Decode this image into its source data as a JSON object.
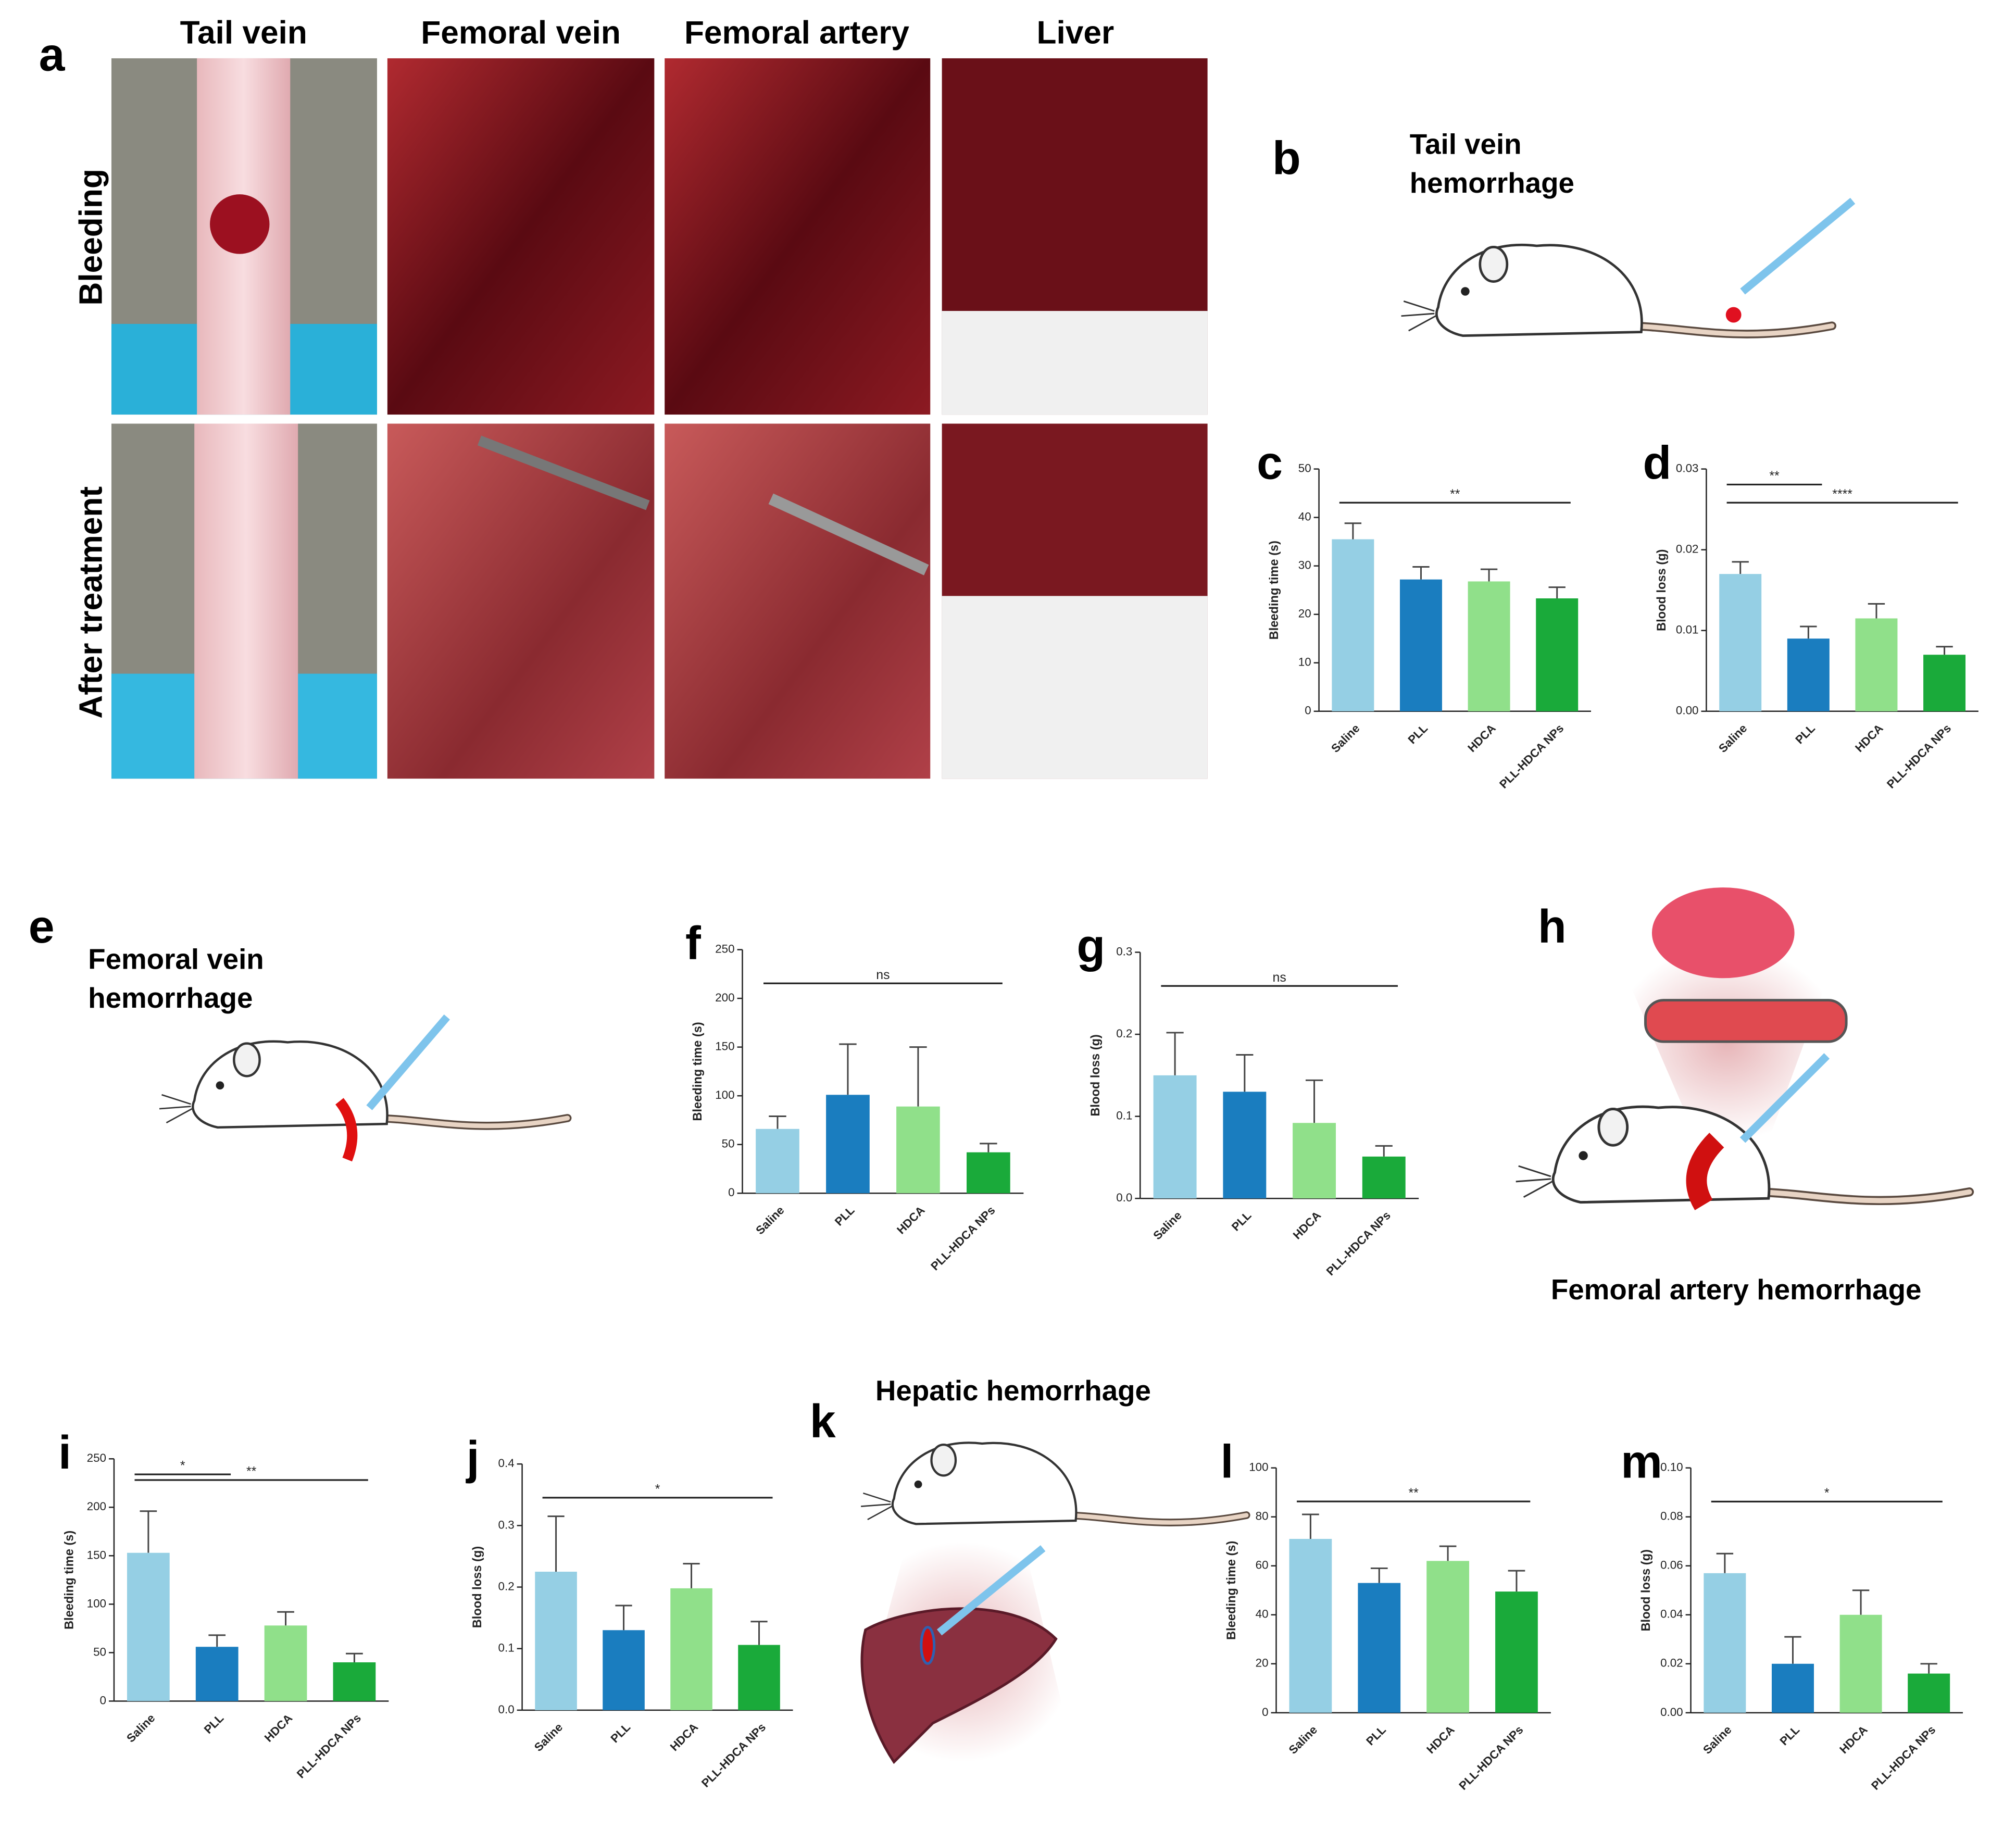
{
  "panel_a": {
    "letter": "a",
    "columns": [
      "Tail vein",
      "Femoral  vein",
      "Femoral  artery",
      "Liver"
    ],
    "rows": [
      "Bleeding",
      "After treatment"
    ]
  },
  "diagrams": [
    {
      "letter": "b",
      "lines": [
        "Tail vein",
        "hemorrhage"
      ]
    },
    {
      "letter": "e",
      "lines": [
        "Femoral vein",
        "hemorrhage"
      ]
    },
    {
      "letter": "h",
      "lines": [
        "Femoral artery hemorrhage"
      ]
    },
    {
      "letter": "k",
      "lines": [
        "Hepatic hemorrhage"
      ]
    }
  ],
  "chart_data": [
    {
      "type": "bar",
      "panel": "c",
      "ylabel": "Bleeding time (s)",
      "categories": [
        "Saline",
        "PLL",
        "HDCA",
        "PLL-HDCA NPs"
      ],
      "colors": [
        "#95cfe4",
        "#1a7dbf",
        "#90e08a",
        "#1aaa3a"
      ],
      "values": [
        35.5,
        27.2,
        26.8,
        23.3
      ],
      "errors": [
        3.3,
        2.6,
        2.5,
        2.3
      ],
      "ylim": [
        0,
        50
      ],
      "yticks": [
        0,
        10,
        20,
        30,
        40,
        50
      ],
      "annotations": [
        {
          "label": "**",
          "from": 0,
          "to": 3
        }
      ]
    },
    {
      "type": "bar",
      "panel": "d",
      "ylabel": "Blood loss (g)",
      "categories": [
        "Saline",
        "PLL",
        "HDCA",
        "PLL-HDCA NPs"
      ],
      "colors": [
        "#95cfe4",
        "#1a7dbf",
        "#90e08a",
        "#1aaa3a"
      ],
      "values": [
        0.017,
        0.009,
        0.0115,
        0.007
      ],
      "errors": [
        0.0015,
        0.0015,
        0.0018,
        0.001
      ],
      "ylim": [
        0,
        0.03
      ],
      "yticks": [
        {
          "value": 0,
          "label": "0.00"
        },
        {
          "value": 0.01,
          "label": "0.01"
        },
        {
          "value": 0.02,
          "label": "0.02"
        },
        {
          "value": 0.03,
          "label": "0.03"
        }
      ],
      "annotations": [
        {
          "label": "**",
          "from": 0,
          "to": 1
        },
        {
          "label": "****",
          "from": 0,
          "to": 3
        }
      ]
    },
    {
      "type": "bar",
      "panel": "f",
      "ylabel": "Bleeding time (s)",
      "categories": [
        "Saline",
        "PLL",
        "HDCA",
        "PLL-HDCA NPs"
      ],
      "colors": [
        "#95cfe4",
        "#1a7dbf",
        "#90e08a",
        "#1aaa3a"
      ],
      "values": [
        66,
        101,
        89,
        42
      ],
      "errors": [
        13,
        52,
        61,
        9
      ],
      "ylim": [
        0,
        250
      ],
      "yticks": [
        0,
        50,
        100,
        150,
        200,
        250
      ],
      "annotations": [
        {
          "label": "ns",
          "from": 0,
          "to": 3
        }
      ]
    },
    {
      "type": "bar",
      "panel": "g",
      "ylabel": "Blood loss (g)",
      "categories": [
        "Saline",
        "PLL",
        "HDCA",
        "PLL-HDCA NPs"
      ],
      "colors": [
        "#95cfe4",
        "#1a7dbf",
        "#90e08a",
        "#1aaa3a"
      ],
      "values": [
        0.15,
        0.13,
        0.092,
        0.051
      ],
      "errors": [
        0.052,
        0.045,
        0.052,
        0.013
      ],
      "ylim": [
        0,
        0.3
      ],
      "yticks": [
        {
          "value": 0,
          "label": "0.0"
        },
        0.1,
        0.2,
        0.3
      ],
      "annotations": [
        {
          "label": "ns",
          "from": 0,
          "to": 3
        }
      ]
    },
    {
      "type": "bar",
      "panel": "i",
      "ylabel": "Bleeding time (s)",
      "categories": [
        "Saline",
        "PLL",
        "HDCA",
        "PLL-HDCA NPs"
      ],
      "colors": [
        "#95cfe4",
        "#1a7dbf",
        "#90e08a",
        "#1aaa3a"
      ],
      "values": [
        153,
        56,
        78,
        40
      ],
      "errors": [
        43,
        12,
        14,
        9
      ],
      "ylim": [
        0,
        250
      ],
      "yticks": [
        0,
        50,
        100,
        150,
        200,
        250
      ],
      "annotations": [
        {
          "label": "*",
          "from": 0,
          "to": 1
        },
        {
          "label": "**",
          "from": 0,
          "to": 3
        }
      ]
    },
    {
      "type": "bar",
      "panel": "j",
      "ylabel": "Blood loss (g)",
      "categories": [
        "Saline",
        "PLL",
        "HDCA",
        "PLL-HDCA NPs"
      ],
      "colors": [
        "#95cfe4",
        "#1a7dbf",
        "#90e08a",
        "#1aaa3a"
      ],
      "values": [
        0.225,
        0.13,
        0.198,
        0.106
      ],
      "errors": [
        0.09,
        0.04,
        0.04,
        0.038
      ],
      "ylim": [
        0,
        0.4
      ],
      "yticks": [
        {
          "value": 0,
          "label": "0.0"
        },
        0.1,
        0.2,
        0.3,
        0.4
      ],
      "annotations": [
        {
          "label": "*",
          "from": 0,
          "to": 3
        }
      ]
    },
    {
      "type": "bar",
      "panel": "l",
      "ylabel": "Bleeding time (s)",
      "categories": [
        "Saline",
        "PLL",
        "HDCA",
        "PLL-HDCA NPs"
      ],
      "colors": [
        "#95cfe4",
        "#1a7dbf",
        "#90e08a",
        "#1aaa3a"
      ],
      "values": [
        71,
        53,
        62,
        49.5
      ],
      "errors": [
        10,
        6,
        6,
        8.5
      ],
      "ylim": [
        0,
        100
      ],
      "yticks": [
        0,
        20,
        40,
        60,
        80,
        100
      ],
      "annotations": [
        {
          "label": "**",
          "from": 0,
          "to": 3
        }
      ]
    },
    {
      "type": "bar",
      "panel": "m",
      "ylabel": "Blood loss (g)",
      "categories": [
        "Saline",
        "PLL",
        "HDCA",
        "PLL-HDCA NPs"
      ],
      "colors": [
        "#95cfe4",
        "#1a7dbf",
        "#90e08a",
        "#1aaa3a"
      ],
      "values": [
        0.057,
        0.02,
        0.04,
        0.016
      ],
      "errors": [
        0.008,
        0.011,
        0.01,
        0.004
      ],
      "ylim": [
        0,
        0.1
      ],
      "yticks": [
        {
          "value": 0,
          "label": "0.00"
        },
        0.02,
        0.04,
        0.06,
        0.08,
        {
          "value": 0.1,
          "label": "0.10"
        }
      ],
      "annotations": [
        {
          "label": "*",
          "from": 0,
          "to": 3
        }
      ]
    }
  ]
}
